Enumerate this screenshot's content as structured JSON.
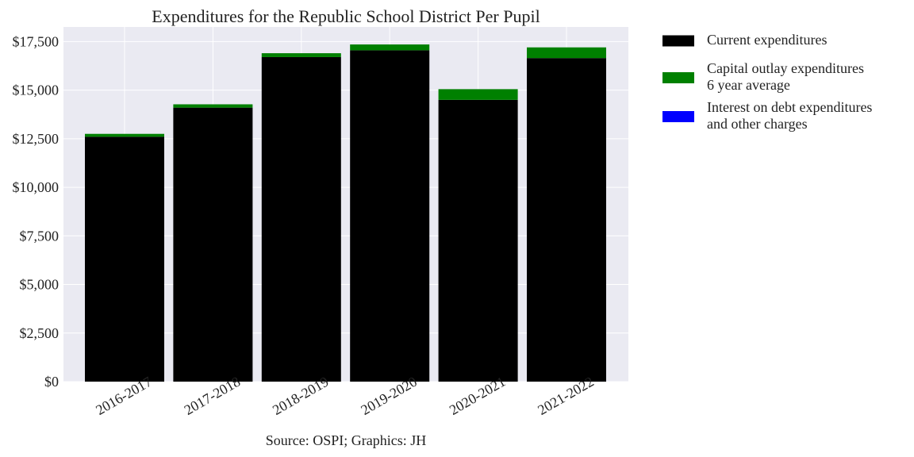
{
  "chart_data": {
    "type": "bar",
    "stacked": true,
    "title": "Expenditures for the Republic School District Per Pupil",
    "caption": "Source: OSPI; Graphics: JH",
    "xlabel": "",
    "ylabel": "",
    "categories": [
      "2016-2017",
      "2017-2018",
      "2018-2019",
      "2019-2020",
      "2020-2021",
      "2021-2022"
    ],
    "ylim": [
      0,
      18250
    ],
    "yticks": [
      0,
      2500,
      5000,
      7500,
      10000,
      12500,
      15000,
      17500
    ],
    "ytick_labels": [
      "$0",
      "$2,500",
      "$5,000",
      "$7,500",
      "$10,000",
      "$12,500",
      "$15,000",
      "$17,500"
    ],
    "series": [
      {
        "name": "Current expenditures",
        "color": "#000000",
        "values": [
          12600,
          14100,
          16700,
          17050,
          14500,
          16650
        ]
      },
      {
        "name": "Capital outlay expenditures\n6 year average",
        "color": "#008000",
        "values": [
          150,
          170,
          200,
          300,
          550,
          550
        ]
      },
      {
        "name": "Interest on debt expenditures\nand other charges",
        "color": "#0000ff",
        "values": [
          0,
          0,
          0,
          0,
          0,
          0
        ]
      }
    ],
    "grid": true,
    "legend_position": "outside-right-top",
    "plot_background": "#eaeaf2",
    "x_tick_rotation": -30
  }
}
